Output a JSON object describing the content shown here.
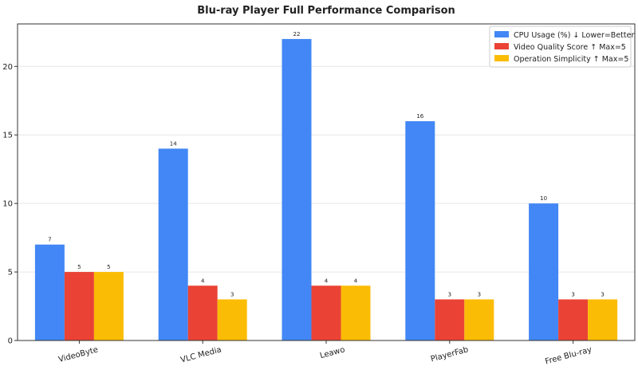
{
  "chart_data": {
    "type": "bar",
    "title": "Blu-ray Player Full Performance Comparison",
    "xlabel": "",
    "ylabel": "",
    "categories": [
      "VideoByte",
      "VLC Media",
      "Leawo",
      "PlayerFab",
      "Free Blu-ray"
    ],
    "series": [
      {
        "name": "CPU Usage (%) ↓ Lower=Better",
        "values": [
          7,
          14,
          22,
          16,
          10
        ],
        "color": "#4287f5"
      },
      {
        "name": "Video Quality Score ↑ Max=5",
        "values": [
          5,
          4,
          4,
          3,
          3
        ],
        "color": "#ea4335"
      },
      {
        "name": "Operation Simplicity ↑ Max=5",
        "values": [
          5,
          3,
          4,
          3,
          3
        ],
        "color": "#fbbc05"
      }
    ],
    "ylim": [
      0,
      23.1
    ],
    "yticks": [
      0,
      5,
      10,
      15,
      20
    ],
    "grid": "horizontal",
    "legend_position": "top-right"
  }
}
